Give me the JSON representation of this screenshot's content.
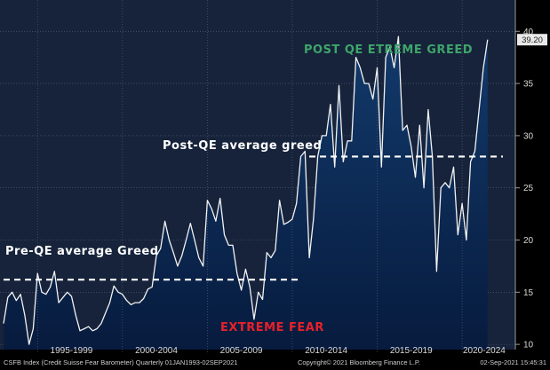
{
  "chart_data": {
    "type": "area",
    "title": "",
    "xlabel": "",
    "ylabel": "",
    "x_range": [
      1993,
      2021.67
    ],
    "ylim": [
      9.5,
      43
    ],
    "yticks": [
      10,
      15,
      20,
      25,
      30,
      35,
      40
    ],
    "period_labels": [
      {
        "label": "1995-1999",
        "x": 1997
      },
      {
        "label": "2000-2004",
        "x": 2002
      },
      {
        "label": "2005-2009",
        "x": 2007
      },
      {
        "label": "2010-2014",
        "x": 2012
      },
      {
        "label": "2015-2019",
        "x": 2017
      },
      {
        "label": "2020-2024",
        "x": 2021.3
      }
    ],
    "last_value_label": "39.20",
    "series": [
      {
        "x": [
          1993.0,
          1993.25,
          1993.5,
          1993.75,
          1994.0,
          1994.25,
          1994.5,
          1994.75,
          1995.0,
          1995.25,
          1995.5,
          1995.75,
          1996.0,
          1996.25,
          1996.5,
          1996.75,
          1997.0,
          1997.25,
          1997.5,
          1997.75,
          1998.0,
          1998.25,
          1998.5,
          1998.75,
          1999.0,
          1999.25,
          1999.5,
          1999.75,
          2000.0,
          2000.25,
          2000.5,
          2000.75,
          2001.0,
          2001.25,
          2001.5,
          2001.75,
          2002.0,
          2002.25,
          2002.5,
          2002.75,
          2003.0,
          2003.25,
          2003.5,
          2003.75,
          2004.0,
          2004.25,
          2004.5,
          2004.75,
          2005.0,
          2005.25,
          2005.5,
          2005.75,
          2006.0,
          2006.25,
          2006.5,
          2006.75,
          2007.0,
          2007.25,
          2007.5,
          2007.75,
          2008.0,
          2008.25,
          2008.5,
          2008.75,
          2009.0,
          2009.25,
          2009.5,
          2009.75,
          2010.0,
          2010.25,
          2010.5,
          2010.75,
          2011.0,
          2011.25,
          2011.5,
          2011.75,
          2012.0,
          2012.25,
          2012.5,
          2012.75,
          2013.0,
          2013.25,
          2013.5,
          2013.75,
          2014.0,
          2014.25,
          2014.5,
          2014.75,
          2015.0,
          2015.25,
          2015.5,
          2015.75,
          2016.0,
          2016.25,
          2016.5,
          2016.75,
          2017.0,
          2017.25,
          2017.5,
          2017.75,
          2018.0,
          2018.25,
          2018.5,
          2018.75,
          2019.0,
          2019.25,
          2019.5,
          2019.75,
          2020.0,
          2020.25,
          2020.5,
          2020.75,
          2021.0,
          2021.25,
          2021.5
        ],
        "y": [
          12.0,
          14.5,
          15.0,
          14.2,
          14.8,
          12.8,
          10.0,
          11.5,
          16.8,
          15.0,
          14.8,
          15.5,
          17.0,
          14.0,
          14.5,
          15.0,
          14.6,
          12.8,
          11.3,
          11.5,
          11.7,
          11.3,
          11.5,
          12.0,
          13.0,
          14.0,
          15.6,
          15.0,
          14.8,
          14.2,
          13.8,
          14.0,
          14.0,
          14.4,
          15.3,
          15.5,
          18.5,
          19.2,
          21.8,
          20.0,
          18.8,
          17.5,
          18.5,
          20.0,
          21.6,
          20.0,
          18.3,
          17.5,
          23.8,
          23.0,
          21.8,
          24.0,
          20.5,
          19.5,
          19.5,
          16.8,
          15.2,
          17.2,
          15.5,
          12.4,
          15.0,
          14.3,
          18.8,
          18.3,
          19.0,
          23.8,
          21.5,
          21.7,
          22.0,
          23.5,
          28.0,
          28.5,
          18.3,
          22.0,
          28.0,
          30.0,
          30.0,
          33.0,
          27.0,
          34.8,
          27.5,
          29.5,
          29.5,
          37.5,
          36.5,
          35.0,
          35.0,
          33.5,
          36.5,
          27.0,
          37.5,
          38.5,
          36.5,
          39.5,
          30.5,
          31.0,
          29.0,
          26.0,
          31.0,
          25.0,
          32.5,
          28.0,
          17.0,
          25.0,
          25.5,
          25.0,
          27.0,
          20.5,
          23.5,
          20.0,
          27.5,
          28.5,
          32.5,
          36.5,
          39.2
        ]
      }
    ],
    "annotations": [
      {
        "text": "POST QE ETREME GREED",
        "color": "#3ea56a"
      },
      {
        "text": "Post-QE average greed",
        "color": "#ffffff",
        "ref_y": 28.0,
        "x_from": 2011.0,
        "x_to": 2021.67
      },
      {
        "text": "Pre-QE average Greed",
        "color": "#ffffff",
        "ref_y": 16.2,
        "x_from": 1993.0,
        "x_to": 2010.5
      },
      {
        "text": "EXTREME FEAR",
        "color": "#e8202a"
      }
    ],
    "footer": {
      "source": "CSFB Index (Credit Suisse Fear Barometer)  Quarterly 01JAN1993-02SEP2021",
      "copyright": "Copyright© 2021 Bloomberg Finance L.P.",
      "timestamp": "02-Sep-2021 15:45:31"
    },
    "colors": {
      "background": "#000000",
      "plot_background": "#16233b",
      "area_top": "#123a6b",
      "area_bottom": "#071b3e",
      "line": "#f2f2f2",
      "grid": "#5a6478",
      "dashed": "#ffffff"
    },
    "grid": true
  }
}
